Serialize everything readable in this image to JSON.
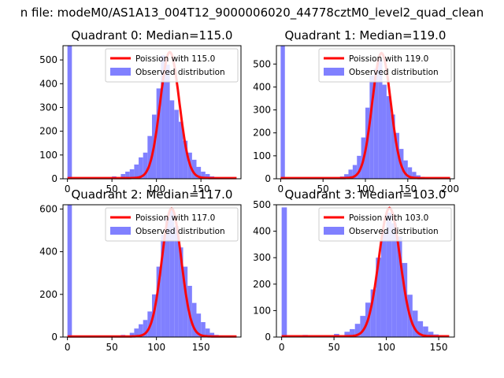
{
  "figure": {
    "suptitle": "n file: modeM0/AS1A13_004T12_9000006020_44778cztM0_level2_quad_clean",
    "colors": {
      "bar": "#8080ff",
      "line": "#ff0000",
      "axes": "#000000"
    }
  },
  "chart_data": [
    {
      "type": "bar",
      "title": "Quadrant 0: Median=115.0",
      "legend_placement": "top-right",
      "legend": [
        "Poission with 115.0",
        "Observed distribution"
      ],
      "xlim": [
        -5,
        195
      ],
      "ylim": [
        0,
        560
      ],
      "xticks": [
        0,
        50,
        100,
        150
      ],
      "yticks": [
        0,
        100,
        200,
        300,
        400,
        500
      ],
      "median": 115.0,
      "peak": 530,
      "bins": {
        "x": [
          0,
          50,
          60,
          65,
          70,
          75,
          80,
          85,
          90,
          95,
          100,
          105,
          110,
          115,
          120,
          125,
          130,
          135,
          140,
          145,
          150,
          155,
          160,
          165,
          170,
          175
        ],
        "values": [
          560,
          10,
          20,
          30,
          40,
          60,
          90,
          110,
          180,
          270,
          380,
          520,
          480,
          330,
          290,
          240,
          160,
          110,
          80,
          50,
          30,
          20,
          10,
          5,
          3,
          2
        ]
      }
    },
    {
      "type": "bar",
      "title": "Quadrant 1: Median=119.0",
      "legend_placement": "top-right",
      "legend": [
        "Poission with 119.0",
        "Observed distribution"
      ],
      "xlim": [
        -5,
        205
      ],
      "ylim": [
        0,
        580
      ],
      "xticks": [
        0,
        50,
        100,
        150,
        200
      ],
      "yticks": [
        0,
        100,
        200,
        300,
        400,
        500
      ],
      "median": 119.0,
      "peak": 545,
      "bins": {
        "x": [
          0,
          70,
          75,
          80,
          85,
          90,
          95,
          100,
          105,
          110,
          115,
          120,
          125,
          130,
          135,
          140,
          145,
          150,
          155,
          160,
          165,
          170
        ],
        "values": [
          580,
          10,
          20,
          40,
          60,
          100,
          180,
          310,
          450,
          480,
          520,
          410,
          360,
          280,
          200,
          130,
          80,
          50,
          30,
          15,
          8,
          3
        ]
      }
    },
    {
      "type": "bar",
      "title": "Quadrant 2: Median=117.0",
      "legend_placement": "top-right",
      "legend": [
        "Poission with 117.0",
        "Observed distribution"
      ],
      "xlim": [
        -5,
        195
      ],
      "ylim": [
        0,
        620
      ],
      "xticks": [
        0,
        50,
        100,
        150
      ],
      "yticks": [
        0,
        200,
        400,
        600
      ],
      "median": 117.0,
      "peak": 600,
      "bins": {
        "x": [
          0,
          60,
          70,
          75,
          80,
          85,
          90,
          95,
          100,
          105,
          110,
          115,
          120,
          125,
          130,
          135,
          140,
          145,
          150,
          155,
          160,
          165,
          170
        ],
        "values": [
          620,
          10,
          20,
          40,
          60,
          80,
          120,
          200,
          330,
          480,
          560,
          600,
          520,
          420,
          330,
          240,
          160,
          110,
          70,
          40,
          20,
          10,
          5
        ]
      }
    },
    {
      "type": "bar",
      "title": "Quadrant 3: Median=103.0",
      "legend_placement": "top-right",
      "legend": [
        "Poission with 103.0",
        "Observed distribution"
      ],
      "xlim": [
        -5,
        165
      ],
      "ylim": [
        0,
        500
      ],
      "xticks": [
        0,
        50,
        100,
        150
      ],
      "yticks": [
        0,
        100,
        200,
        300,
        400,
        500
      ],
      "median": 103.0,
      "peak": 485,
      "bins": {
        "x": [
          0,
          20,
          50,
          60,
          65,
          70,
          75,
          80,
          85,
          90,
          95,
          100,
          105,
          110,
          115,
          120,
          125,
          130,
          135,
          140,
          145,
          150
        ],
        "values": [
          490,
          8,
          12,
          20,
          30,
          50,
          80,
          130,
          180,
          300,
          400,
          470,
          430,
          380,
          280,
          160,
          100,
          60,
          40,
          20,
          10,
          5
        ]
      }
    }
  ]
}
